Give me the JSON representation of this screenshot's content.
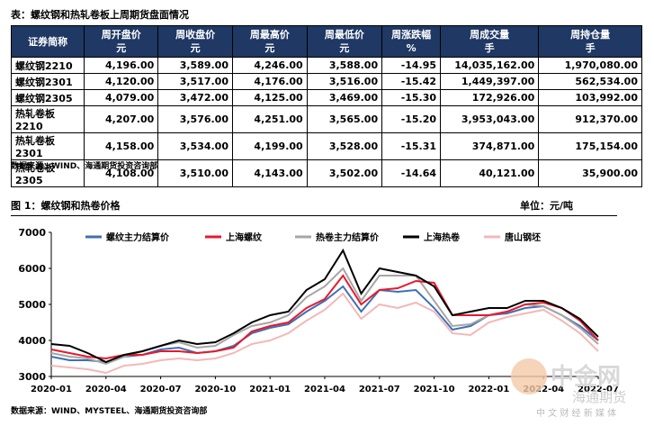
{
  "header": {
    "title": "表：螺纹钢和热轧卷板上周期货盘面情况"
  },
  "table": {
    "columns": [
      {
        "name": "证券简称"
      },
      {
        "name": "周开盘价",
        "unit": "元"
      },
      {
        "name": "周收盘价",
        "unit": "元"
      },
      {
        "name": "周最高价",
        "unit": "元"
      },
      {
        "name": "周最低价",
        "unit": "元"
      },
      {
        "name": "周涨跌幅",
        "unit": "%"
      },
      {
        "name": "周成交量",
        "unit": "手"
      },
      {
        "name": "周持仓量",
        "unit": "手"
      }
    ],
    "rows": [
      [
        "螺纹钢2210",
        "4,196.00",
        "3,589.00",
        "4,246.00",
        "3,588.00",
        "-14.95",
        "14,035,162.00",
        "1,970,080.00"
      ],
      [
        "螺纹钢2301",
        "4,120.00",
        "3,517.00",
        "4,176.00",
        "3,516.00",
        "-15.42",
        "1,449,397.00",
        "562,534.00"
      ],
      [
        "螺纹钢2305",
        "4,079.00",
        "3,472.00",
        "4,125.00",
        "3,469.00",
        "-15.30",
        "172,926.00",
        "103,992.00"
      ],
      [
        "热轧卷板2210",
        "4,207.00",
        "3,576.00",
        "4,251.00",
        "3,565.00",
        "-15.20",
        "3,953,043.00",
        "912,370.00"
      ],
      [
        "热轧卷板2301",
        "4,158.00",
        "3,534.00",
        "4,199.00",
        "3,528.00",
        "-15.31",
        "374,871.00",
        "175,154.00"
      ],
      [
        "热轧卷板2305",
        "4,108.00",
        "3,510.00",
        "4,143.00",
        "3,502.00",
        "-14.64",
        "40,121.00",
        "35,900.00"
      ]
    ],
    "source": "数据来源：WIND、海通期货投资咨询部"
  },
  "chart_data": {
    "type": "line",
    "title": "图 1：螺纹钢和热卷价格",
    "unit": "单位：元/吨",
    "source": "数据来源：WIND、MYSTEEL、海通期货投资咨询部",
    "x": [
      "2020-01",
      "2020-02",
      "2020-03",
      "2020-04",
      "2020-05",
      "2020-06",
      "2020-07",
      "2020-08",
      "2020-09",
      "2020-10",
      "2020-11",
      "2020-12",
      "2021-01",
      "2021-02",
      "2021-03",
      "2021-04",
      "2021-05",
      "2021-06",
      "2021-07",
      "2021-08",
      "2021-09",
      "2021-10",
      "2021-11",
      "2021-12",
      "2022-01",
      "2022-02",
      "2022-03",
      "2022-04",
      "2022-05",
      "2022-06",
      "2022-07"
    ],
    "xticks": [
      "2020-01",
      "2020-04",
      "2020-07",
      "2020-10",
      "2021-01",
      "2021-04",
      "2021-07",
      "2021-10",
      "2022-01",
      "2022-04",
      "2022-07"
    ],
    "ylim": [
      3000,
      7000
    ],
    "yticks": [
      3000,
      4000,
      5000,
      6000,
      7000
    ],
    "series": [
      {
        "name": "螺纹主力结算价",
        "color": "#3f6fb5",
        "values": [
          3550,
          3450,
          3450,
          3400,
          3550,
          3600,
          3750,
          3800,
          3650,
          3700,
          3850,
          4200,
          4350,
          4450,
          4800,
          5100,
          5500,
          4800,
          5400,
          5350,
          5400,
          4900,
          4300,
          4400,
          4700,
          4750,
          4900,
          4950,
          4700,
          4400,
          4000
        ]
      },
      {
        "name": "上海螺纹",
        "color": "#e8192c",
        "values": [
          3750,
          3650,
          3550,
          3500,
          3600,
          3600,
          3700,
          3700,
          3650,
          3700,
          3800,
          4250,
          4400,
          4500,
          4900,
          5150,
          5800,
          5000,
          5400,
          5450,
          5650,
          5600,
          4700,
          4700,
          4700,
          4800,
          5000,
          5050,
          4900,
          4550,
          4000
        ]
      },
      {
        "name": "热卷主力结算价",
        "color": "#a6a6a6",
        "values": [
          3650,
          3550,
          3500,
          3350,
          3550,
          3700,
          3850,
          3950,
          3800,
          3850,
          4150,
          4400,
          4500,
          4700,
          5200,
          5500,
          6000,
          5100,
          5800,
          5800,
          5800,
          5100,
          4400,
          4450,
          4700,
          4800,
          5000,
          4950,
          4700,
          4350,
          3900
        ]
      },
      {
        "name": "上海热卷",
        "color": "#000000",
        "values": [
          3900,
          3850,
          3650,
          3400,
          3600,
          3700,
          3850,
          4000,
          3900,
          3950,
          4200,
          4500,
          4700,
          4800,
          5400,
          5700,
          6500,
          5300,
          6000,
          5900,
          5800,
          5500,
          4700,
          4800,
          4900,
          4900,
          5100,
          5100,
          4900,
          4600,
          4100
        ]
      },
      {
        "name": "唐山钢坯",
        "color": "#f4b7b7",
        "values": [
          3300,
          3250,
          3200,
          3100,
          3300,
          3350,
          3450,
          3500,
          3450,
          3500,
          3650,
          3900,
          4000,
          4200,
          4550,
          4850,
          5300,
          4600,
          5000,
          4900,
          5050,
          4800,
          4200,
          4150,
          4500,
          4650,
          4750,
          4850,
          4550,
          4200,
          3700
        ]
      }
    ]
  },
  "watermark": {
    "brand": "中金网",
    "tagline": "中 文 财 经 新 媒 体",
    "partner": "海通期货"
  }
}
